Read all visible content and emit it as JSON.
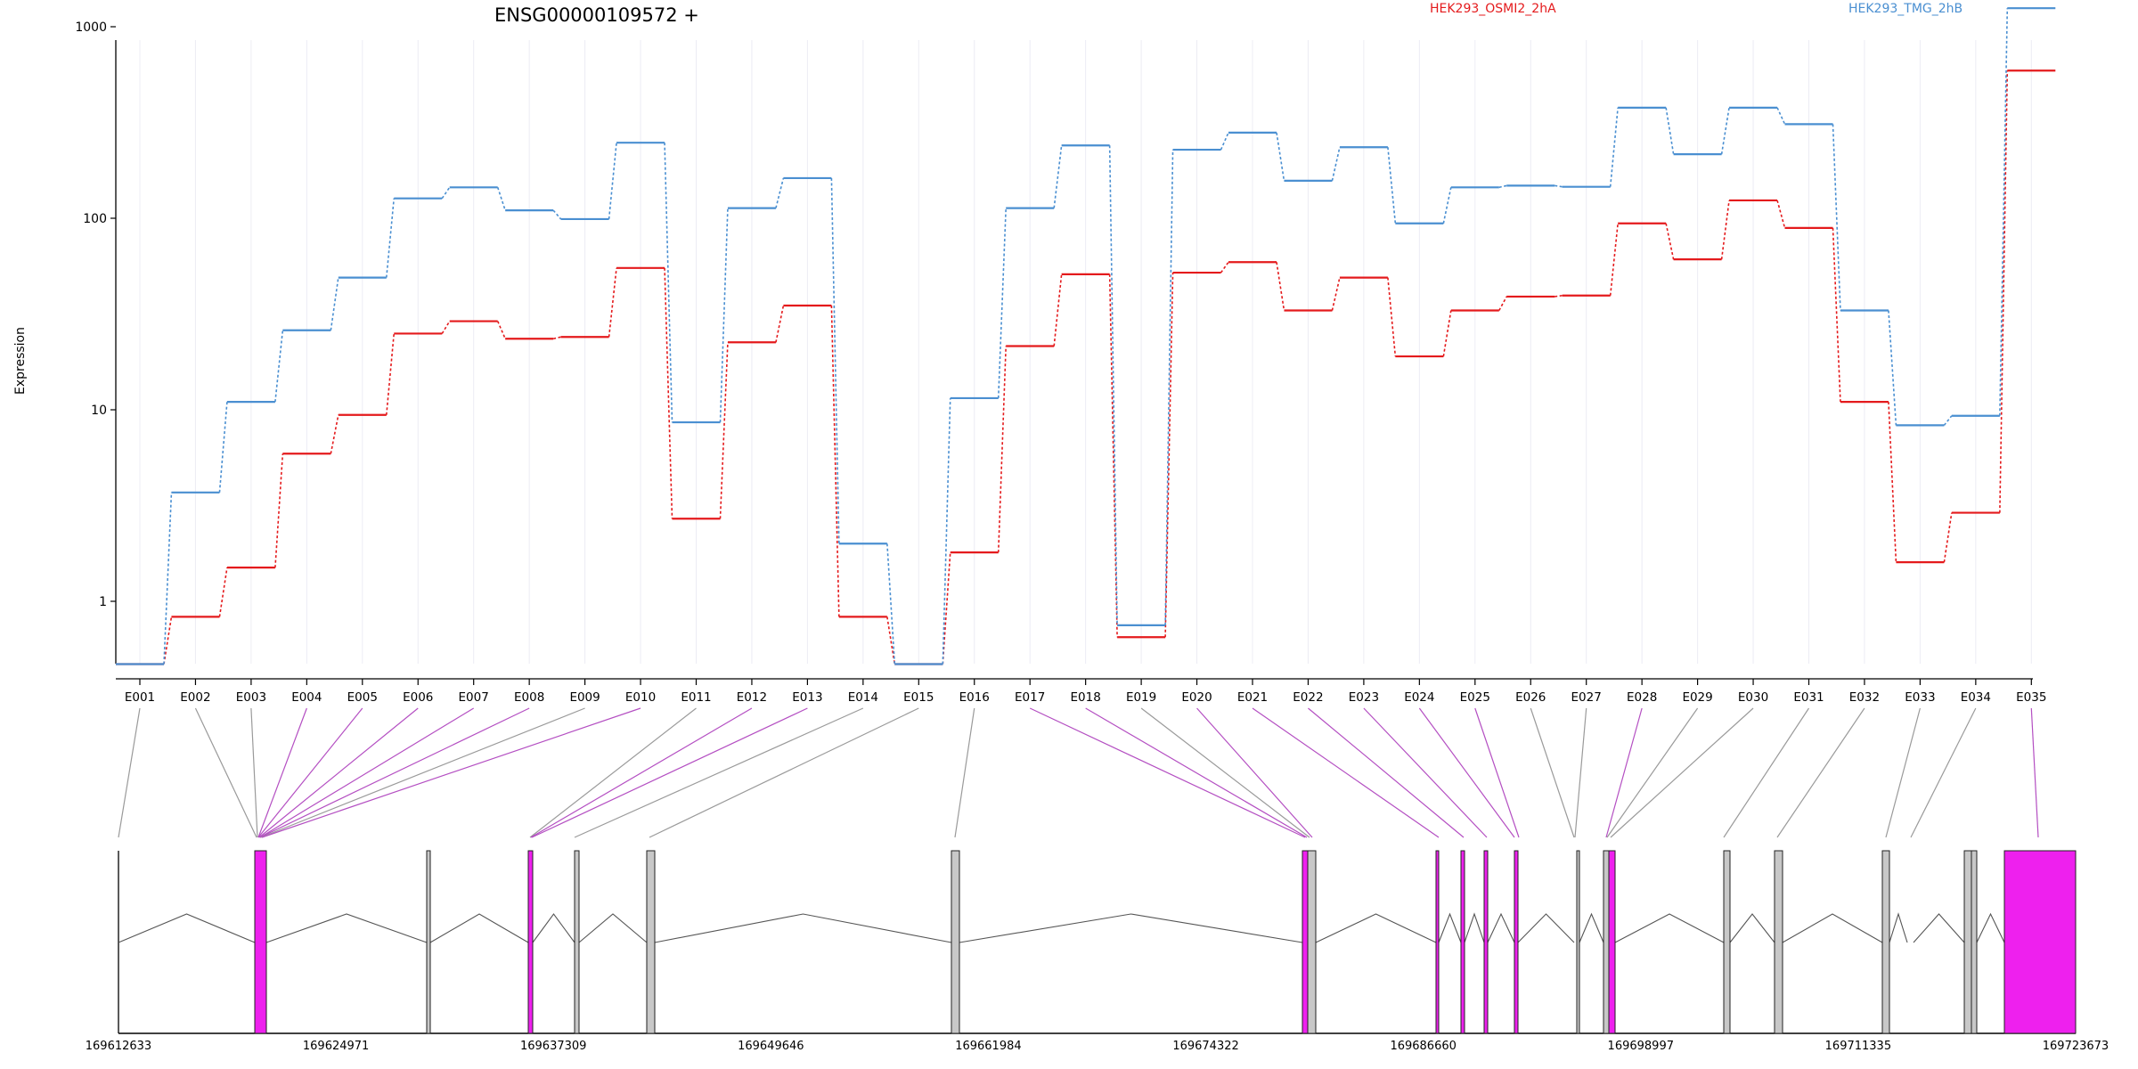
{
  "chart_data": {
    "type": "line",
    "title": "ENSG00000109572 +",
    "ylabel": "Expression",
    "yscale": "log",
    "ylim": [
      0.45,
      1600
    ],
    "yticks": [
      1,
      10,
      100,
      1000
    ],
    "ytick_labels": [
      "1",
      "10",
      "100",
      "1000"
    ],
    "grid": "vertical",
    "legend_position": "top",
    "categories": [
      "E001",
      "E002",
      "E003",
      "E004",
      "E005",
      "E006",
      "E007",
      "E008",
      "E009",
      "E010",
      "E011",
      "E012",
      "E013",
      "E014",
      "E015",
      "E016",
      "E017",
      "E018",
      "E019",
      "E020",
      "E021",
      "E022",
      "E023",
      "E024",
      "E025",
      "E026",
      "E027",
      "E028",
      "E029",
      "E030",
      "E031",
      "E032",
      "E033",
      "E034",
      "E035"
    ],
    "series": [
      {
        "name": "HEK293_OSMI2_2hA",
        "color": "#e41a1c",
        "values": [
          0.47,
          0.83,
          1.5,
          5.9,
          9.4,
          25,
          29,
          23.5,
          24,
          55,
          2.7,
          22.5,
          35,
          0.83,
          0.47,
          1.8,
          21.5,
          51,
          0.65,
          52,
          59,
          33,
          49,
          19,
          33,
          39,
          39.5,
          94,
          61,
          124,
          89,
          11,
          1.6,
          2.9,
          590
        ]
      },
      {
        "name": "HEK293_TMG_2hB",
        "color": "#4a8fd1",
        "values": [
          0.47,
          3.7,
          11,
          26,
          49,
          127,
          145,
          110,
          99,
          248,
          8.6,
          113,
          162,
          2.0,
          0.47,
          11.5,
          113,
          240,
          0.75,
          228,
          280,
          157,
          235,
          94,
          145,
          148,
          146,
          378,
          216,
          378,
          310,
          33,
          8.3,
          9.3,
          1250
        ]
      }
    ],
    "gene_model": {
      "coordinate_labels": [
        "169612633",
        "169624971",
        "169637309",
        "169649646",
        "169661984",
        "169674322",
        "169686660",
        "169698997",
        "169711335",
        "169723673"
      ],
      "highlight_color": "#ee20ee",
      "exons": [
        {
          "id": "E001",
          "highlighted": false
        },
        {
          "id": "E002",
          "highlighted": false
        },
        {
          "id": "E003",
          "highlighted": false
        },
        {
          "id": "E004",
          "highlighted": true
        },
        {
          "id": "E005",
          "highlighted": true
        },
        {
          "id": "E006",
          "highlighted": true
        },
        {
          "id": "E007",
          "highlighted": true
        },
        {
          "id": "E008",
          "highlighted": true
        },
        {
          "id": "E009",
          "highlighted": false
        },
        {
          "id": "E010",
          "highlighted": true
        },
        {
          "id": "E011",
          "highlighted": false
        },
        {
          "id": "E012",
          "highlighted": true
        },
        {
          "id": "E013",
          "highlighted": true
        },
        {
          "id": "E014",
          "highlighted": false
        },
        {
          "id": "E015",
          "highlighted": false
        },
        {
          "id": "E016",
          "highlighted": false
        },
        {
          "id": "E017",
          "highlighted": true
        },
        {
          "id": "E018",
          "highlighted": true
        },
        {
          "id": "E019",
          "highlighted": false
        },
        {
          "id": "E020",
          "highlighted": true
        },
        {
          "id": "E021",
          "highlighted": true
        },
        {
          "id": "E022",
          "highlighted": true
        },
        {
          "id": "E023",
          "highlighted": true
        },
        {
          "id": "E024",
          "highlighted": true
        },
        {
          "id": "E025",
          "highlighted": true
        },
        {
          "id": "E026",
          "highlighted": false
        },
        {
          "id": "E027",
          "highlighted": false
        },
        {
          "id": "E028",
          "highlighted": true
        },
        {
          "id": "E029",
          "highlighted": false
        },
        {
          "id": "E030",
          "highlighted": false
        },
        {
          "id": "E031",
          "highlighted": false
        },
        {
          "id": "E032",
          "highlighted": false
        },
        {
          "id": "E033",
          "highlighted": false
        },
        {
          "id": "E034",
          "highlighted": false
        },
        {
          "id": "E035",
          "highlighted": true
        }
      ]
    }
  }
}
